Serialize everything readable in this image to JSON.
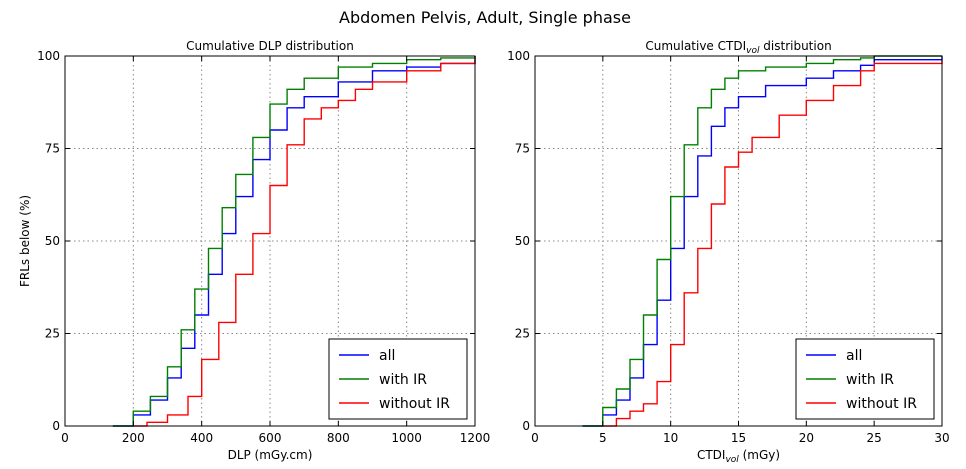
{
  "figure": {
    "title": "Abdomen Pelvis, Adult, Single phase"
  },
  "chart_data": [
    {
      "type": "line",
      "title": "Cumulative DLP distribution",
      "xlabel": "DLP (mGy.cm)",
      "ylabel": "FRLs below (%)",
      "xlim": [
        0,
        1200
      ],
      "ylim": [
        0,
        100
      ],
      "xticks": [
        0,
        200,
        400,
        600,
        800,
        1000,
        1200
      ],
      "yticks": [
        0,
        25,
        50,
        75,
        100
      ],
      "grid": true,
      "legend": "lower-right",
      "series": [
        {
          "name": "all",
          "color": "#0000ff",
          "x": [
            140,
            200,
            250,
            300,
            340,
            380,
            420,
            460,
            500,
            550,
            600,
            650,
            700,
            800,
            900,
            1000,
            1100,
            1200
          ],
          "y": [
            0,
            3,
            7,
            13,
            21,
            30,
            41,
            52,
            62,
            72,
            80,
            86,
            89,
            93,
            96,
            97,
            98,
            100
          ]
        },
        {
          "name": "with IR",
          "color": "#008000",
          "x": [
            140,
            200,
            250,
            300,
            340,
            380,
            420,
            460,
            500,
            550,
            600,
            650,
            700,
            800,
            900,
            1000,
            1100,
            1200
          ],
          "y": [
            0,
            4,
            8,
            16,
            26,
            37,
            48,
            59,
            68,
            78,
            87,
            91,
            94,
            97,
            98,
            99,
            99.5,
            100
          ]
        },
        {
          "name": "without IR",
          "color": "#ff0000",
          "x": [
            200,
            240,
            300,
            360,
            400,
            450,
            500,
            550,
            600,
            650,
            700,
            750,
            800,
            850,
            900,
            1000,
            1100,
            1200
          ],
          "y": [
            0,
            1,
            3,
            8,
            18,
            28,
            41,
            52,
            65,
            76,
            83,
            86,
            88,
            91,
            93,
            96,
            98,
            100
          ]
        }
      ]
    },
    {
      "type": "line",
      "title": "Cumulative CTDI",
      "title_sub": "vol",
      "title_suffix": " distribution",
      "xlabel": "CTDI",
      "xlabel_sub": "vol",
      "xlabel_suffix": " (mGy)",
      "ylabel": "",
      "xlim": [
        0,
        30
      ],
      "ylim": [
        0,
        100
      ],
      "xticks": [
        0,
        5,
        10,
        15,
        20,
        25,
        30
      ],
      "yticks": [
        0,
        25,
        50,
        75,
        100
      ],
      "grid": true,
      "legend": "lower-right",
      "series": [
        {
          "name": "all",
          "color": "#0000ff",
          "x": [
            3.5,
            5,
            6,
            7,
            8,
            9,
            10,
            11,
            12,
            13,
            14,
            15,
            17,
            20,
            22,
            24,
            25,
            30
          ],
          "y": [
            0,
            3,
            7,
            13,
            22,
            34,
            48,
            62,
            73,
            81,
            86,
            89,
            92,
            94,
            96,
            97.5,
            99,
            100
          ]
        },
        {
          "name": "with IR",
          "color": "#008000",
          "x": [
            3.5,
            5,
            6,
            7,
            8,
            9,
            10,
            11,
            12,
            13,
            14,
            15,
            17,
            20,
            22,
            24,
            25,
            30
          ],
          "y": [
            0,
            5,
            10,
            18,
            30,
            45,
            62,
            76,
            86,
            91,
            94,
            96,
            97,
            98,
            99,
            99.5,
            100,
            100
          ]
        },
        {
          "name": "without IR",
          "color": "#ff0000",
          "x": [
            5,
            6,
            7,
            8,
            9,
            10,
            11,
            12,
            13,
            14,
            15,
            16,
            18,
            20,
            22,
            24,
            25,
            30
          ],
          "y": [
            0,
            2,
            4,
            6,
            12,
            22,
            36,
            48,
            60,
            70,
            74,
            78,
            84,
            88,
            92,
            96,
            98,
            99
          ]
        }
      ]
    }
  ]
}
